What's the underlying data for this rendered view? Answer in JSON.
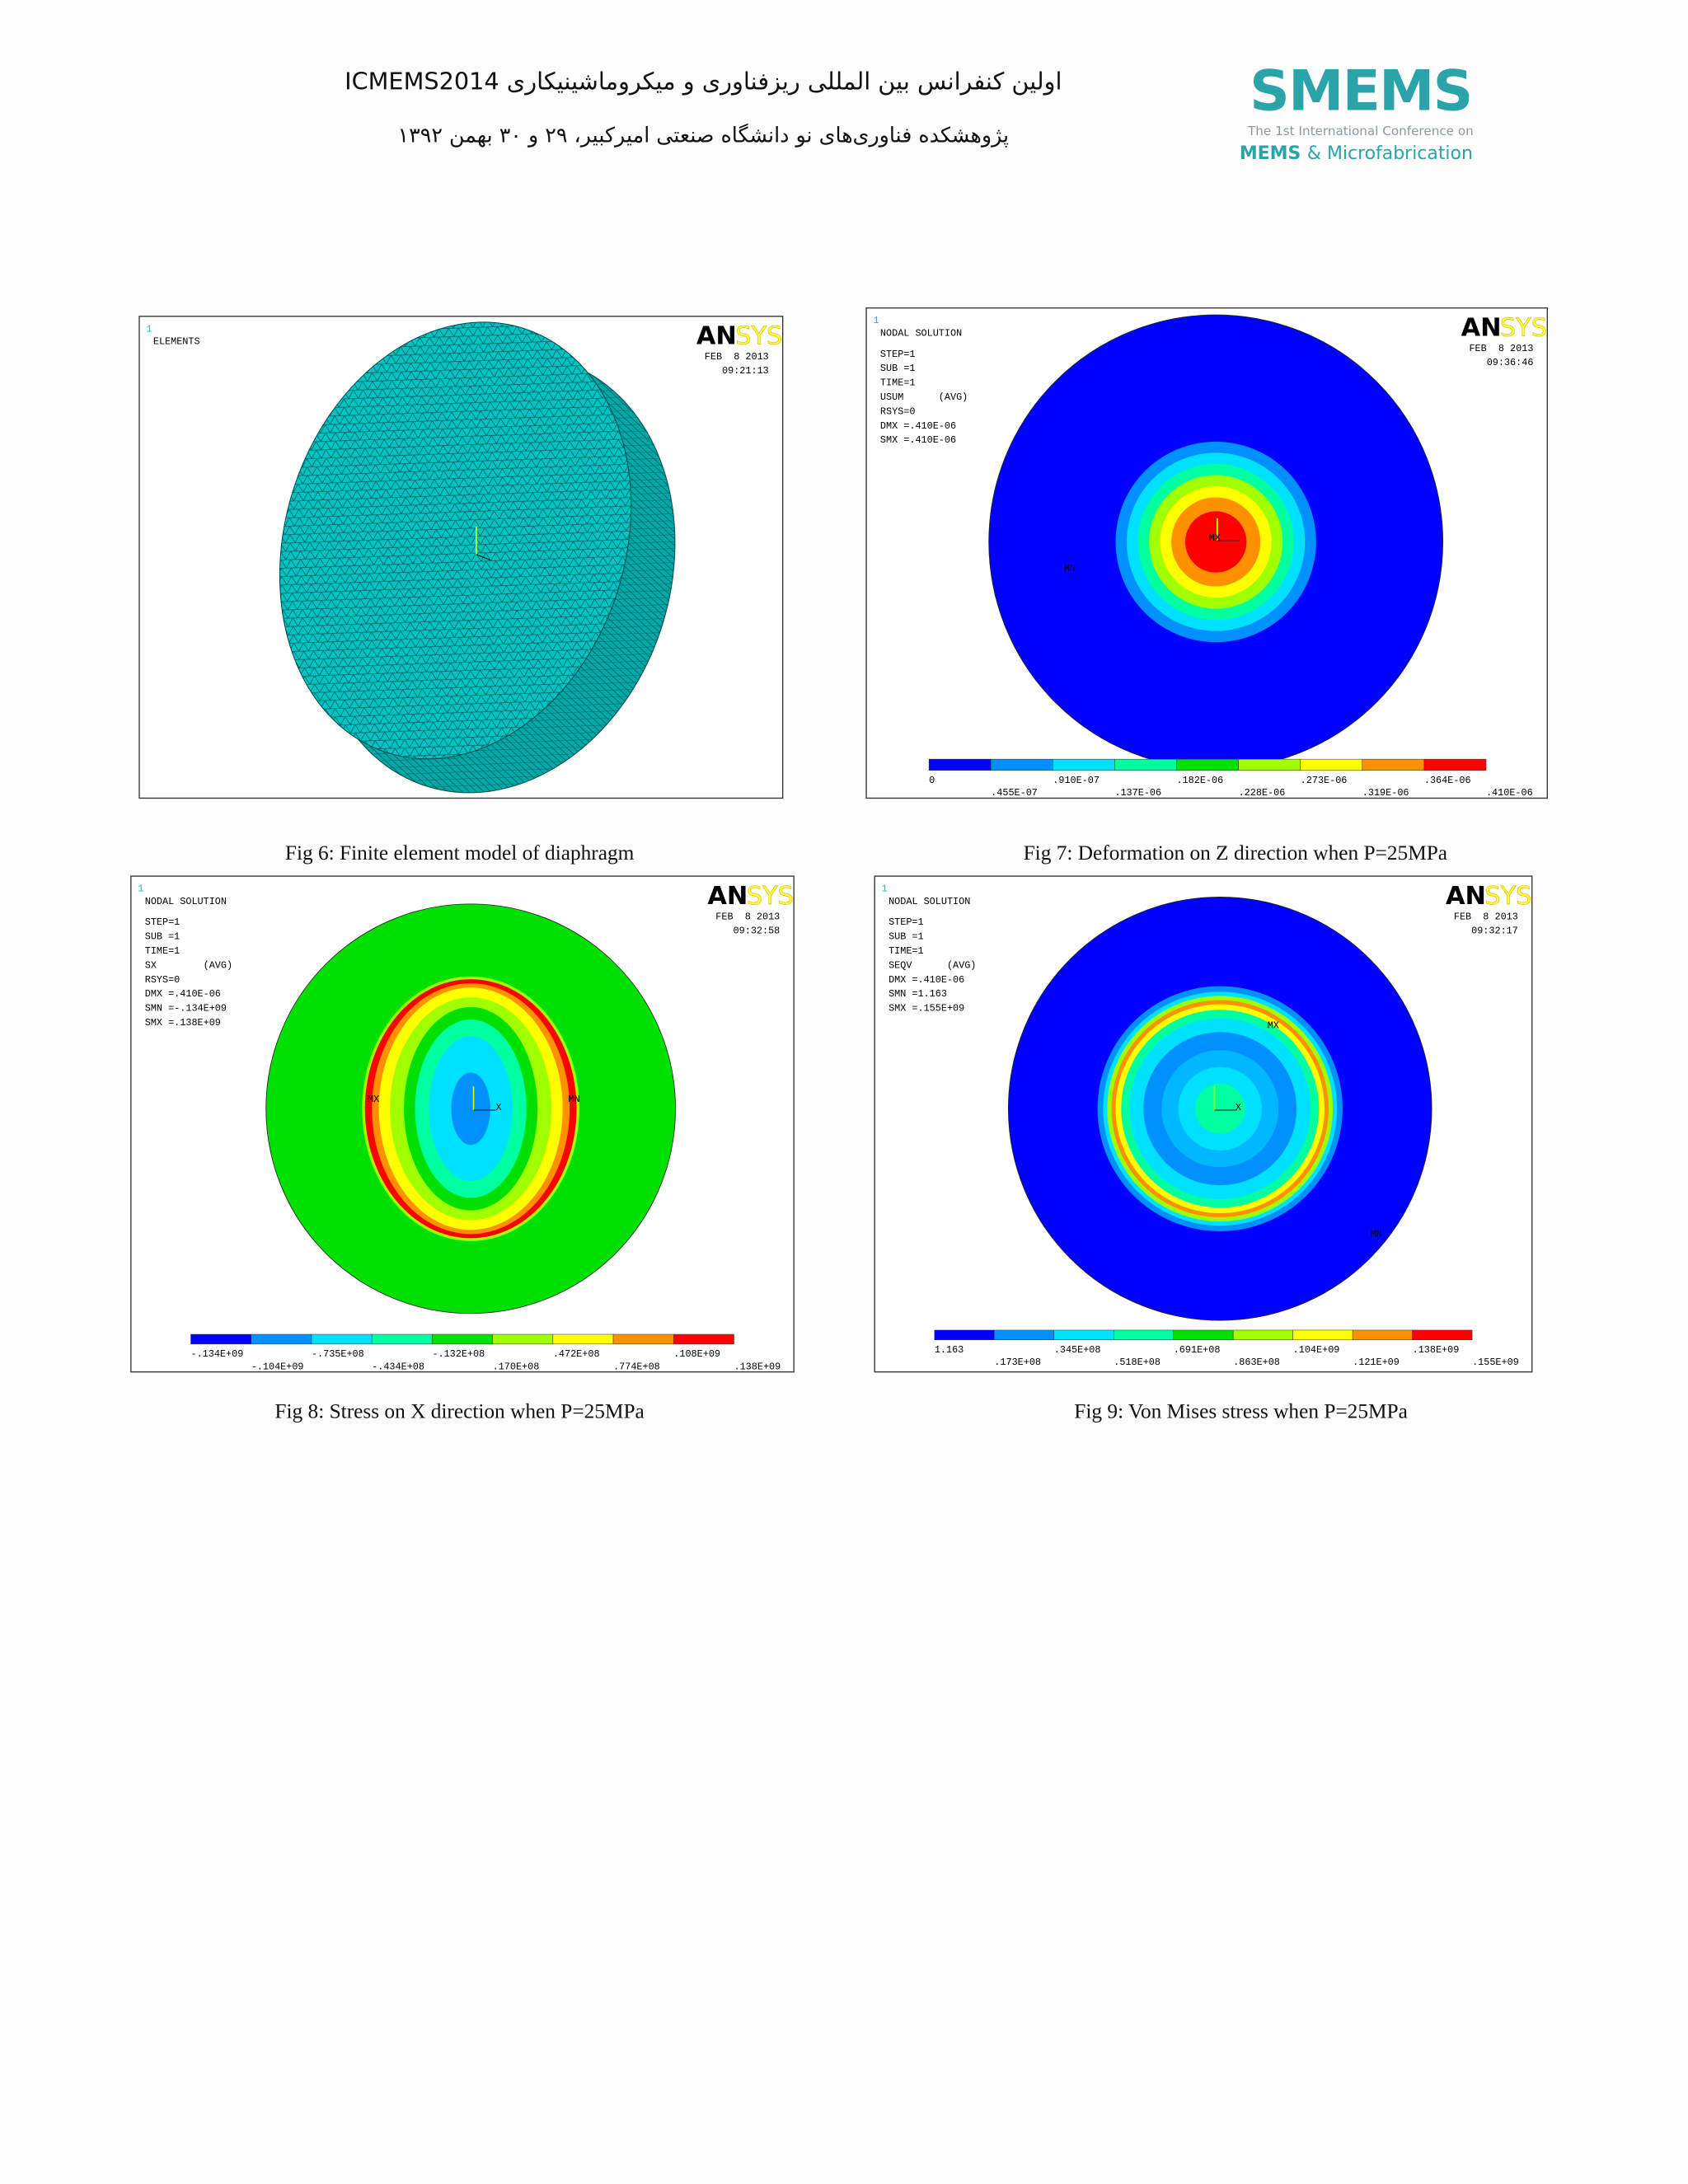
{
  "header": {
    "title": "اولین کنفرانس بین المللی ریزفناوری و میکروماشینیکاری ICMEMS2014",
    "subtitle": "پژوهشکده فناوری‌های نو دانشگاه صنعتی امیرکبیر، ۲۹ و ۳۰ بهمن ۱۳۹۲",
    "logo": {
      "mark": "SMEMS",
      "line1": "The 1st International Conference on",
      "line2_a": "MEMS",
      "line2_b": "& Microfabrication"
    }
  },
  "figures": [
    {
      "caption": "Fig 6: Finite element model of diaphragm",
      "panel": {
        "index": "1",
        "brand_a": "AN",
        "brand_b": "SYS",
        "date": "FEB  8 2013",
        "time": "09:21:13",
        "info": [
          "ELEMENTS"
        ],
        "markers": [],
        "legend_top": [],
        "legend_bottom": []
      }
    },
    {
      "caption": "Fig 7: Deformation on Z direction when P=25MPa",
      "panel": {
        "index": "1",
        "brand_a": "AN",
        "brand_b": "SYS",
        "date": "FEB  8 2013",
        "time": "09:36:46",
        "info": [
          "NODAL SOLUTION",
          "STEP=1",
          "SUB =1",
          "TIME=1",
          "USUM      (AVG)",
          "RSYS=0",
          "DMX =.410E-06",
          "SMX =.410E-06"
        ],
        "markers": [
          "MX",
          "MN"
        ],
        "legend_top": [
          "0",
          ".910E-07",
          ".182E-06",
          ".273E-06",
          ".364E-06"
        ],
        "legend_bottom": [
          ".455E-07",
          ".137E-06",
          ".228E-06",
          ".319E-06",
          ".410E-06"
        ]
      }
    },
    {
      "caption": "Fig 8: Stress on X direction when P=25MPa",
      "panel": {
        "index": "1",
        "brand_a": "AN",
        "brand_b": "SYS",
        "date": "FEB  8 2013",
        "time": "09:32:58",
        "info": [
          "NODAL SOLUTION",
          "STEP=1",
          "SUB =1",
          "TIME=1",
          "SX        (AVG)",
          "RSYS=0",
          "DMX =.410E-06",
          "SMN =-.134E+09",
          "SMX =.138E+09"
        ],
        "markers": [
          "MX",
          "MN",
          "X"
        ],
        "legend_top": [
          "-.134E+09",
          "-.735E+08",
          "-.132E+08",
          ".472E+08",
          ".108E+09"
        ],
        "legend_bottom": [
          "-.104E+09",
          "-.434E+08",
          ".170E+08",
          ".774E+08",
          ".138E+09"
        ]
      }
    },
    {
      "caption": "Fig 9: Von Mises stress when P=25MPa",
      "panel": {
        "index": "1",
        "brand_a": "AN",
        "brand_b": "SYS",
        "date": "FEB  8 2013",
        "time": "09:32:17",
        "info": [
          "NODAL SOLUTION",
          "STEP=1",
          "SUB =1",
          "TIME=1",
          "SEQV      (AVG)",
          "DMX =.410E-06",
          "SMN =1.163",
          "SMX =.155E+09"
        ],
        "markers": [
          "MX",
          "MN",
          "X"
        ],
        "legend_top": [
          "1.163",
          ".345E+08",
          ".691E+08",
          ".104E+09",
          ".138E+09"
        ],
        "legend_bottom": [
          ".173E+08",
          ".518E+08",
          ".863E+08",
          ".121E+09",
          ".155E+09"
        ]
      }
    }
  ]
}
